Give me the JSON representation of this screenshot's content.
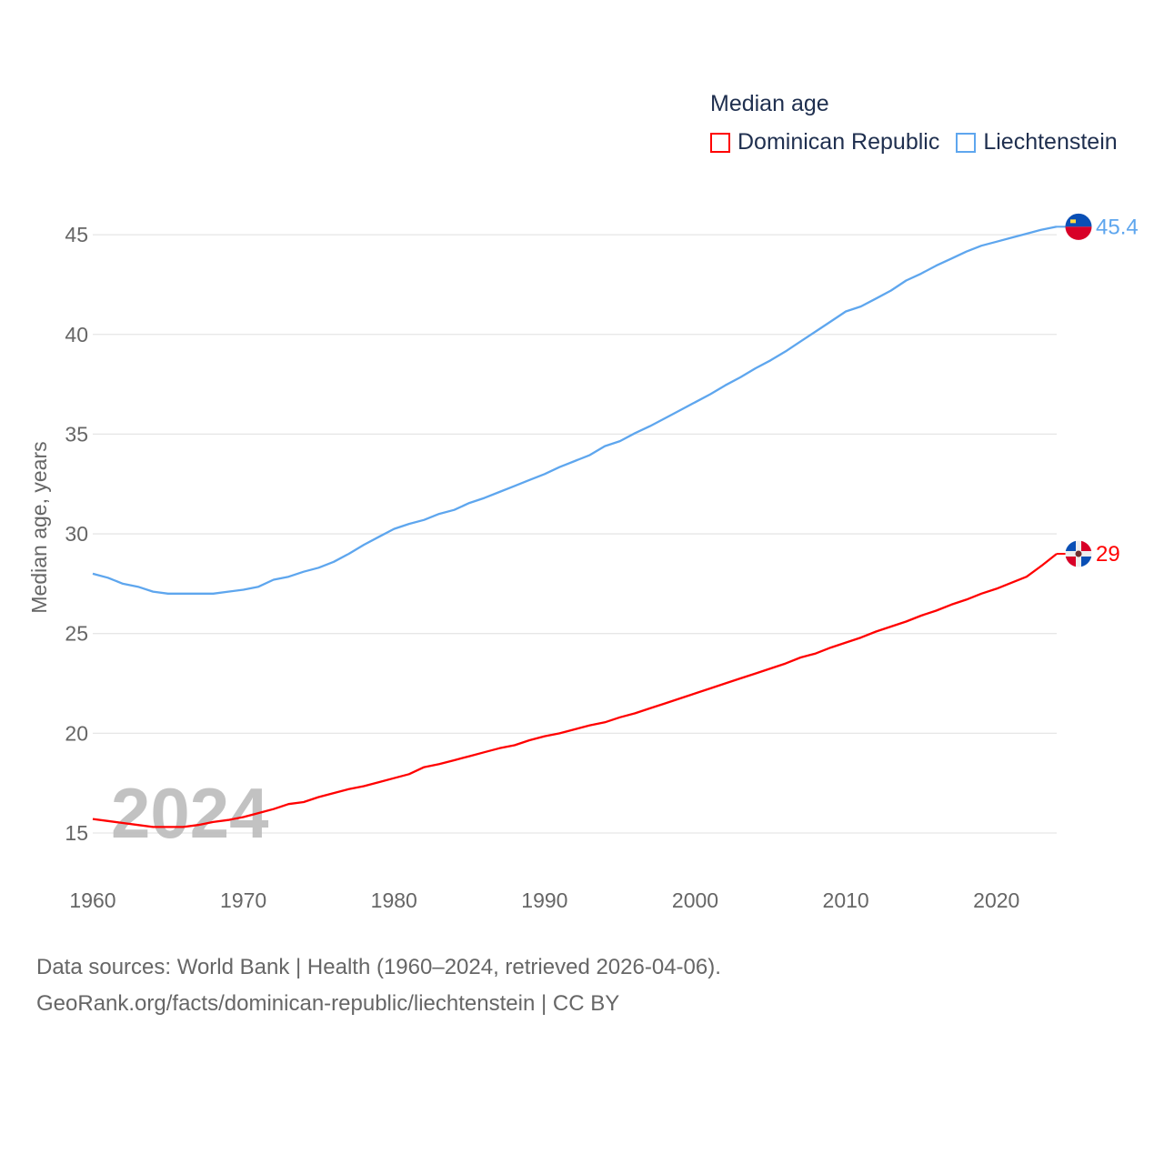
{
  "chart_data": {
    "type": "line",
    "title": "Median age",
    "ylabel": "Median age, years",
    "xlabel": "",
    "xlim": [
      1960,
      2024
    ],
    "ylim": [
      13,
      47
    ],
    "yticks": [
      15,
      20,
      25,
      30,
      35,
      40,
      45
    ],
    "xticks": [
      1960,
      1970,
      1980,
      1990,
      2000,
      2010,
      2020
    ],
    "grid": true,
    "legend_placement": "top-right",
    "year_watermark": "2024",
    "x": [
      1960,
      1961,
      1962,
      1963,
      1964,
      1965,
      1966,
      1967,
      1968,
      1969,
      1970,
      1971,
      1972,
      1973,
      1974,
      1975,
      1976,
      1977,
      1978,
      1979,
      1980,
      1981,
      1982,
      1983,
      1984,
      1985,
      1986,
      1987,
      1988,
      1989,
      1990,
      1991,
      1992,
      1993,
      1994,
      1995,
      1996,
      1997,
      1998,
      1999,
      2000,
      2001,
      2002,
      2003,
      2004,
      2005,
      2006,
      2007,
      2008,
      2009,
      2010,
      2011,
      2012,
      2013,
      2014,
      2015,
      2016,
      2017,
      2018,
      2019,
      2020,
      2021,
      2022,
      2023,
      2024
    ],
    "series": [
      {
        "name": "Dominican Republic",
        "color": "#ff0000",
        "end_label": "29",
        "values": [
          15.7,
          15.6,
          15.5,
          15.4,
          15.3,
          15.3,
          15.3,
          15.4,
          15.55,
          15.65,
          15.8,
          16.0,
          16.2,
          16.45,
          16.55,
          16.8,
          17.0,
          17.2,
          17.35,
          17.55,
          17.75,
          17.95,
          18.3,
          18.45,
          18.65,
          18.85,
          19.05,
          19.25,
          19.4,
          19.65,
          19.85,
          20.0,
          20.2,
          20.4,
          20.55,
          20.8,
          21.0,
          21.25,
          21.5,
          21.75,
          22.0,
          22.25,
          22.5,
          22.75,
          23.0,
          23.25,
          23.5,
          23.8,
          24.0,
          24.3,
          24.55,
          24.8,
          25.1,
          25.35,
          25.6,
          25.9,
          26.15,
          26.45,
          26.7,
          27.0,
          27.25,
          27.55,
          27.85,
          28.4,
          29.0
        ]
      },
      {
        "name": "Liechtenstein",
        "color": "#5ea6ee",
        "end_label": "45.4",
        "values": [
          28.0,
          27.8,
          27.5,
          27.35,
          27.1,
          27.0,
          27.0,
          27.0,
          27.0,
          27.1,
          27.2,
          27.35,
          27.7,
          27.85,
          28.1,
          28.3,
          28.6,
          29.0,
          29.45,
          29.85,
          30.25,
          30.5,
          30.7,
          31.0,
          31.2,
          31.55,
          31.8,
          32.1,
          32.4,
          32.7,
          33.0,
          33.35,
          33.65,
          33.95,
          34.4,
          34.65,
          35.05,
          35.4,
          35.8,
          36.2,
          36.6,
          37.0,
          37.45,
          37.85,
          38.3,
          38.7,
          39.15,
          39.65,
          40.15,
          40.65,
          41.15,
          41.4,
          41.8,
          42.2,
          42.7,
          43.05,
          43.45,
          43.8,
          44.15,
          44.45,
          44.65,
          44.85,
          45.05,
          45.25,
          45.4
        ]
      }
    ]
  },
  "source": {
    "line1": "Data sources: World Bank | Health (1960–2024, retrieved 2026-04-06).",
    "line2": "GeoRank.org/facts/dominican-republic/liechtenstein | CC BY"
  }
}
